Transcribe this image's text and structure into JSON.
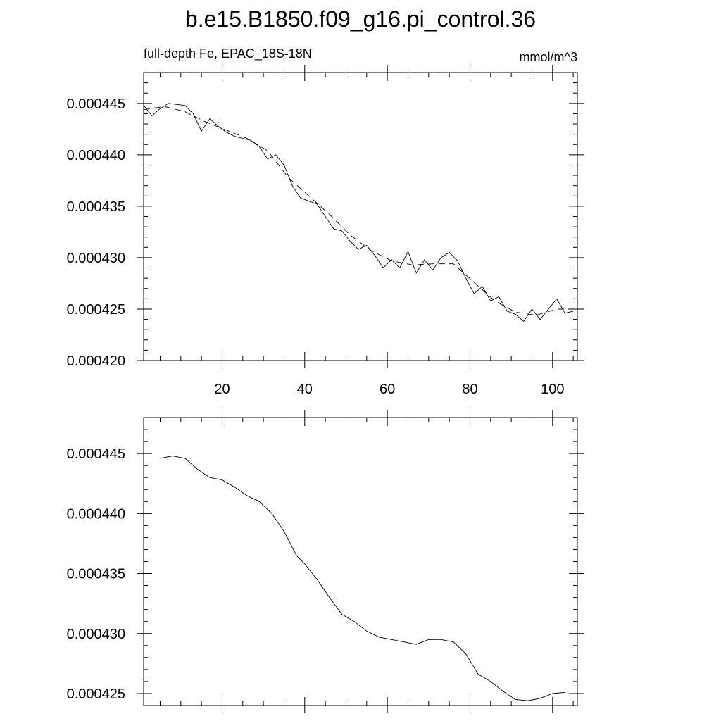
{
  "title": "b.e15.B1850.f09_g16.pi_control.36",
  "chart_data": [
    {
      "type": "line",
      "left_label": "full-depth Fe, EPAC_18S-18N",
      "right_label": "mmol/m^3",
      "xlim": [
        1,
        106
      ],
      "ylim": [
        0.00042,
        0.000448
      ],
      "x_ticks": [
        20,
        40,
        60,
        80,
        100
      ],
      "y_ticks": [
        0.00042,
        0.000425,
        0.00043,
        0.000435,
        0.00044,
        0.000445
      ],
      "y_tick_labels": [
        "0.000420",
        "0.000425",
        "0.000430",
        "0.000435",
        "0.000440",
        "0.000445"
      ],
      "x_tick_labels": [
        "20",
        "40",
        "60",
        "80",
        "100"
      ],
      "series": [
        {
          "style": "solid",
          "x": [
            1,
            3,
            5,
            7,
            9,
            11,
            13,
            15,
            17,
            19,
            21,
            23,
            25,
            27,
            29,
            31,
            33,
            35,
            37,
            39,
            41,
            43,
            45,
            47,
            49,
            51,
            53,
            55,
            57,
            59,
            61,
            63,
            65,
            67,
            69,
            71,
            73,
            75,
            77,
            79,
            81,
            83,
            85,
            87,
            89,
            91,
            93,
            95,
            97,
            99,
            101,
            103,
            105
          ],
          "y": [
            0.0004448,
            0.0004438,
            0.0004445,
            0.000445,
            0.0004449,
            0.0004448,
            0.000444,
            0.0004423,
            0.0004435,
            0.0004428,
            0.0004422,
            0.0004418,
            0.0004416,
            0.0004414,
            0.0004408,
            0.0004396,
            0.00044,
            0.000439,
            0.000437,
            0.0004358,
            0.0004355,
            0.0004352,
            0.000434,
            0.0004328,
            0.0004326,
            0.0004316,
            0.0004308,
            0.0004312,
            0.0004302,
            0.000429,
            0.0004298,
            0.000429,
            0.0004306,
            0.0004285,
            0.0004298,
            0.0004288,
            0.00043,
            0.0004305,
            0.0004297,
            0.000428,
            0.0004265,
            0.0004272,
            0.0004258,
            0.0004262,
            0.0004248,
            0.0004245,
            0.0004238,
            0.000425,
            0.000424,
            0.000425,
            0.000426,
            0.0004246,
            0.0004248
          ]
        },
        {
          "style": "dashed",
          "x": [
            1,
            6,
            11,
            16,
            21,
            26,
            31,
            36,
            41,
            46,
            51,
            56,
            61,
            66,
            71,
            76,
            81,
            86,
            91,
            96,
            101,
            104
          ],
          "y": [
            0.0004444,
            0.0004447,
            0.0004442,
            0.0004432,
            0.0004424,
            0.0004416,
            0.0004404,
            0.0004378,
            0.000436,
            0.0004342,
            0.0004322,
            0.0004307,
            0.0004297,
            0.0004293,
            0.0004294,
            0.0004294,
            0.0004276,
            0.0004258,
            0.0004247,
            0.0004244,
            0.000425,
            0.000425
          ]
        }
      ]
    },
    {
      "type": "line",
      "xlim": [
        1,
        106
      ],
      "ylim": [
        0.000424,
        0.000448
      ],
      "x_ticks": [
        20,
        40,
        60,
        80,
        100
      ],
      "y_ticks": [
        0.000425,
        0.00043,
        0.000435,
        0.00044,
        0.000445
      ],
      "y_tick_labels": [
        "0.000425",
        "0.000430",
        "0.000435",
        "0.000440",
        "0.000445"
      ],
      "series": [
        {
          "style": "solid",
          "x": [
            5,
            8,
            11,
            14,
            17,
            20,
            23,
            26,
            29,
            32,
            35,
            38,
            40,
            43,
            46,
            49,
            52,
            55,
            58,
            61,
            64,
            67,
            70,
            73,
            76,
            79,
            82,
            85,
            88,
            91,
            94,
            97,
            100,
            103
          ],
          "y": [
            0.0004446,
            0.0004448,
            0.0004446,
            0.0004437,
            0.000443,
            0.0004428,
            0.0004422,
            0.0004415,
            0.000441,
            0.00044,
            0.0004385,
            0.0004365,
            0.0004358,
            0.0004345,
            0.000433,
            0.0004316,
            0.000431,
            0.0004302,
            0.0004297,
            0.0004295,
            0.0004293,
            0.0004291,
            0.0004295,
            0.0004295,
            0.0004293,
            0.0004283,
            0.0004266,
            0.000426,
            0.0004252,
            0.0004245,
            0.0004244,
            0.0004246,
            0.000425,
            0.0004251
          ]
        }
      ]
    }
  ]
}
